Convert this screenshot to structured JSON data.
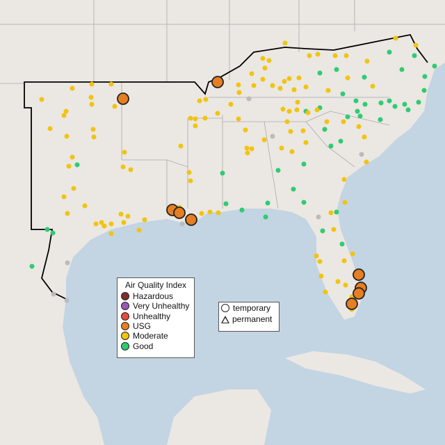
{
  "legend": {
    "title": "Air Quality Index",
    "categories": [
      {
        "label": "Hazardous",
        "color": "#7e2f2b"
      },
      {
        "label": "Very Unhealthy",
        "color": "#9b59b6"
      },
      {
        "label": "Unhealthy",
        "color": "#e74c3c"
      },
      {
        "label": "USG",
        "color": "#e67e22"
      },
      {
        "label": "Moderate",
        "color": "#f1c40f"
      },
      {
        "label": "Good",
        "color": "#2ecc71"
      }
    ]
  },
  "shape_legend": {
    "temporary": "temporary",
    "permanent": "permanent"
  },
  "colors": {
    "land": "#ebe7e3",
    "water": "#c3d4e3",
    "no_data": "#bbbbbb"
  }
}
